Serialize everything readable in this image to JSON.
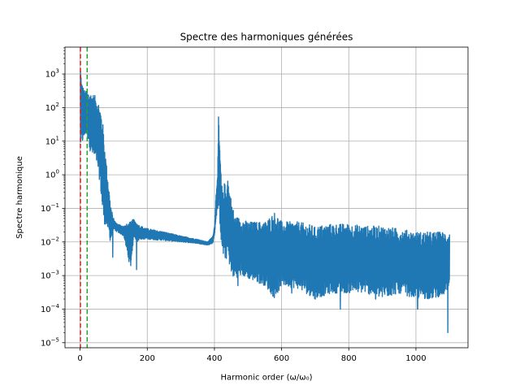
{
  "chart_data": {
    "type": "line",
    "title": "Spectre des harmoniques générées",
    "xlabel": "Harmonic order (ω/ω₀)",
    "ylabel": "Spectre harmonique",
    "xlim": [
      -45,
      1155
    ],
    "ylim_log10": [
      -5.15,
      3.8
    ],
    "yscale": "log",
    "grid": true,
    "x_ticks": [
      {
        "value": 0,
        "label": "0"
      },
      {
        "value": 200,
        "label": "200"
      },
      {
        "value": 400,
        "label": "400"
      },
      {
        "value": 600,
        "label": "600"
      },
      {
        "value": 800,
        "label": "800"
      },
      {
        "value": 1000,
        "label": "1000"
      }
    ],
    "y_ticks": [
      {
        "exp": -5,
        "base": "10",
        "sup": "−5"
      },
      {
        "exp": -4,
        "base": "10",
        "sup": "−4"
      },
      {
        "exp": -3,
        "base": "10",
        "sup": "−3"
      },
      {
        "exp": -2,
        "base": "10",
        "sup": "−2"
      },
      {
        "exp": -1,
        "base": "10",
        "sup": "−1"
      },
      {
        "exp": 0,
        "base": "10",
        "sup": "0"
      },
      {
        "exp": 1,
        "base": "10",
        "sup": "1"
      },
      {
        "exp": 2,
        "base": "10",
        "sup": "2"
      },
      {
        "exp": 3,
        "base": "10",
        "sup": "3"
      }
    ],
    "vlines": [
      {
        "x": 1,
        "color": "#d62728",
        "style": "dashed"
      },
      {
        "x": 21,
        "color": "#2ca02c",
        "style": "dashed"
      }
    ],
    "series": [
      {
        "color": "#1f77b4",
        "envelope": {
          "x": [
            1,
            5,
            10,
            15,
            20,
            25,
            30,
            40,
            50,
            55,
            60,
            65,
            70,
            75,
            80,
            85,
            90,
            95,
            100,
            105,
            110,
            130,
            150,
            160,
            170,
            180,
            200,
            250,
            300,
            350,
            380,
            395,
            400,
            405,
            410,
            412,
            415,
            418,
            420,
            425,
            430,
            435,
            440,
            445,
            450,
            460,
            480,
            500,
            550,
            580,
            600,
            650,
            700,
            750,
            800,
            850,
            900,
            950,
            1000,
            1050,
            1100
          ],
          "upper": [
            2000,
            600,
            400,
            300,
            320,
            300,
            280,
            250,
            200,
            150,
            100,
            60,
            20,
            5,
            1.5,
            0.5,
            0.15,
            0.08,
            0.05,
            0.04,
            0.035,
            0.03,
            0.04,
            0.05,
            0.035,
            0.03,
            0.025,
            0.02,
            0.015,
            0.012,
            0.01,
            0.015,
            0.03,
            0.3,
            2,
            60,
            10,
            3,
            0.8,
            0.3,
            0.6,
            0.4,
            1.0,
            0.3,
            0.2,
            0.06,
            0.05,
            0.04,
            0.04,
            0.08,
            0.04,
            0.04,
            0.03,
            0.035,
            0.035,
            0.03,
            0.03,
            0.025,
            0.02,
            0.02,
            0.02
          ],
          "lower": [
            6,
            8,
            10,
            15,
            15,
            10,
            5,
            3,
            2,
            1,
            0.5,
            0.1,
            0.04,
            0.03,
            0.025,
            0.02,
            0.01,
            0.015,
            0.025,
            0.02,
            0.02,
            0.015,
            0.0015,
            0.015,
            0.01,
            0.012,
            0.012,
            0.011,
            0.01,
            0.009,
            0.008,
            0.009,
            0.015,
            0.05,
            0.1,
            0.08,
            0.05,
            0.02,
            0.01,
            0.004,
            0.003,
            0.003,
            0.004,
            0.002,
            0.001,
            0.0008,
            0.001,
            0.0008,
            0.0005,
            0.0002,
            0.0005,
            0.0004,
            0.0002,
            0.0003,
            0.0003,
            0.0003,
            0.0002,
            0.0003,
            0.0002,
            0.0002,
            0.0003
          ]
        },
        "dips": [
          {
            "x": 97,
            "y": 0.0035
          },
          {
            "x": 168,
            "y": 0.0015
          },
          {
            "x": 470,
            "y": 0.0005
          },
          {
            "x": 630,
            "y": 0.0003
          },
          {
            "x": 700,
            "y": 0.0002
          },
          {
            "x": 775,
            "y": 0.0001
          },
          {
            "x": 880,
            "y": 0.0002
          },
          {
            "x": 950,
            "y": 0.0003
          },
          {
            "x": 1005,
            "y": 0.0001
          },
          {
            "x": 1075,
            "y": 0.0003
          },
          {
            "x": 1095,
            "y": 2e-05
          }
        ]
      }
    ]
  }
}
